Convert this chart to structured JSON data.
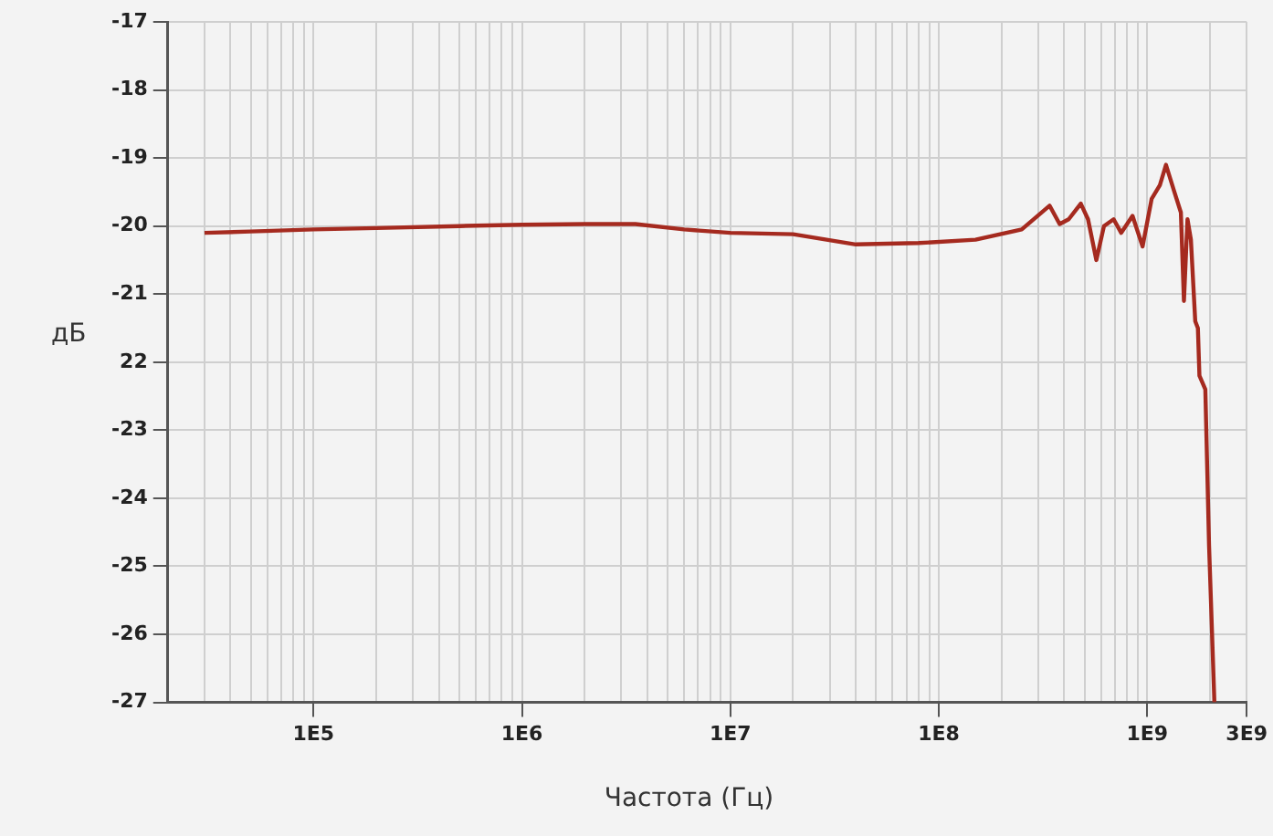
{
  "chart_data": {
    "type": "line",
    "xlabel": "Частота (Гц)",
    "ylabel": "дБ",
    "log": "x",
    "grid": true,
    "legend": false,
    "marker": "none",
    "line_style": "solid",
    "xlim": [
      20000,
      3000000000
    ],
    "xticks": [
      {
        "value": 30000,
        "label": null
      },
      {
        "value": 40000,
        "label": null
      },
      {
        "value": 50000,
        "label": null
      },
      {
        "value": 60000,
        "label": null
      },
      {
        "value": 70000,
        "label": null
      },
      {
        "value": 80000,
        "label": null
      },
      {
        "value": 90000,
        "label": null
      },
      {
        "value": 100000,
        "label": "1E5"
      },
      {
        "value": 200000,
        "label": null
      },
      {
        "value": 300000,
        "label": null
      },
      {
        "value": 400000,
        "label": null
      },
      {
        "value": 500000,
        "label": null
      },
      {
        "value": 600000,
        "label": null
      },
      {
        "value": 700000,
        "label": null
      },
      {
        "value": 800000,
        "label": null
      },
      {
        "value": 900000,
        "label": null
      },
      {
        "value": 1000000,
        "label": "1E6"
      },
      {
        "value": 2000000,
        "label": null
      },
      {
        "value": 3000000,
        "label": null
      },
      {
        "value": 4000000,
        "label": null
      },
      {
        "value": 5000000,
        "label": null
      },
      {
        "value": 6000000,
        "label": null
      },
      {
        "value": 7000000,
        "label": null
      },
      {
        "value": 8000000,
        "label": null
      },
      {
        "value": 9000000,
        "label": null
      },
      {
        "value": 10000000,
        "label": "1E7"
      },
      {
        "value": 20000000,
        "label": null
      },
      {
        "value": 30000000,
        "label": null
      },
      {
        "value": 40000000,
        "label": null
      },
      {
        "value": 50000000,
        "label": null
      },
      {
        "value": 60000000,
        "label": null
      },
      {
        "value": 70000000,
        "label": null
      },
      {
        "value": 80000000,
        "label": null
      },
      {
        "value": 90000000,
        "label": null
      },
      {
        "value": 100000000,
        "label": "1E8"
      },
      {
        "value": 200000000,
        "label": null
      },
      {
        "value": 300000000,
        "label": null
      },
      {
        "value": 400000000,
        "label": null
      },
      {
        "value": 500000000,
        "label": null
      },
      {
        "value": 600000000,
        "label": null
      },
      {
        "value": 700000000,
        "label": null
      },
      {
        "value": 800000000,
        "label": null
      },
      {
        "value": 900000000,
        "label": null
      },
      {
        "value": 1000000000,
        "label": "1E9"
      },
      {
        "value": 2000000000,
        "label": null
      },
      {
        "value": 3000000000,
        "label": "3E9"
      }
    ],
    "ylim": [
      -27,
      -17
    ],
    "yticks": [
      -27,
      -26,
      -25,
      -24,
      -23,
      {
        "value": -22,
        "label": "22"
      },
      -21,
      -20,
      -19,
      -18,
      -17
    ],
    "series": [
      {
        "color": "#a52a1f",
        "x": [
          30000,
          50000,
          100000,
          200000,
          500000,
          1000000,
          2000000,
          3500000,
          6000000,
          10000000,
          20000000,
          40000000,
          80000000,
          150000000,
          250000000,
          340000000,
          380000000,
          420000000,
          480000000,
          520000000,
          570000000,
          620000000,
          690000000,
          750000000,
          850000000,
          950000000,
          1050000000,
          1150000000,
          1230000000,
          1350000000,
          1450000000,
          1500000000,
          1560000000,
          1620000000,
          1700000000,
          1750000000,
          1780000000,
          1900000000,
          1980000000,
          2100000000
        ],
        "values": [
          -20.1,
          -20.08,
          -20.05,
          -20.03,
          -20,
          -19.98,
          -19.97,
          -19.97,
          -20.05,
          -20.1,
          -20.12,
          -20.27,
          -20.25,
          -20.2,
          -20.05,
          -19.7,
          -19.97,
          -19.9,
          -19.67,
          -19.9,
          -20.5,
          -20,
          -19.9,
          -20.1,
          -19.85,
          -20.3,
          -19.6,
          -19.4,
          -19.1,
          -19.5,
          -19.8,
          -21.1,
          -19.9,
          -20.2,
          -21.4,
          -21.5,
          -22.2,
          -22.4,
          -24.7,
          -27
        ]
      }
    ]
  }
}
